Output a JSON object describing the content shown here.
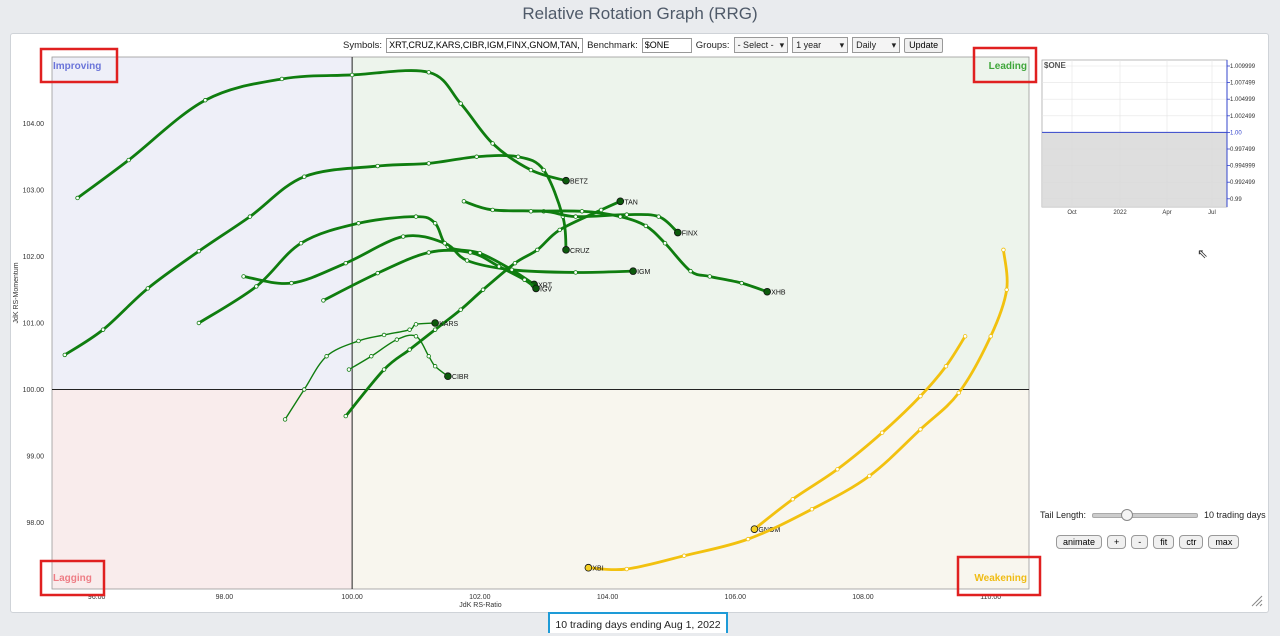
{
  "title": "Relative Rotation Graph (RRG)",
  "toolbar": {
    "symbols_label": "Symbols:",
    "symbols_value": "XRT,CRUZ,KARS,CIBR,IGM,FINX,GNOM,TAN,BETZ",
    "benchmark_label": "Benchmark:",
    "benchmark_value": "$ONE",
    "groups_label": "Groups:",
    "groups_value": "- Select -",
    "period_value": "1 year",
    "frequency_value": "Daily",
    "update_label": "Update"
  },
  "footer": "10 trading days ending Aug 1, 2022",
  "tail": {
    "label": "Tail Length:",
    "value_label": "10 trading days",
    "fraction": 0.3
  },
  "controls": [
    "animate",
    "+",
    "-",
    "fit",
    "ctr",
    "max"
  ],
  "colors": {
    "improving": "#6a74d9",
    "leading": "#3fa63a",
    "lagging": "#ee7d85",
    "weakening": "#f0bc14",
    "tail_green": "#0f7d0f",
    "tail_yellow": "#f2c10f",
    "highlight": "#e02020"
  },
  "chart_data": {
    "type": "scatter",
    "xlabel": "JdK RS-Ratio",
    "ylabel": "JdK RS-Momentum",
    "xlim": [
      95.3,
      110.6
    ],
    "ylim": [
      97.0,
      105.0
    ],
    "xticks": [
      "96.00",
      "98.00",
      "100.00",
      "102.00",
      "104.00",
      "106.00",
      "108.00",
      "110.00"
    ],
    "yticks": [
      "98.00",
      "99.00",
      "100.00",
      "101.00",
      "102.00",
      "103.00",
      "104.00"
    ],
    "quadrants": {
      "top_left": "Improving",
      "top_right": "Leading",
      "bottom_left": "Lagging",
      "bottom_right": "Weakening"
    },
    "series": [
      {
        "name": "BETZ",
        "color": "green",
        "points": [
          [
            95.7,
            102.88
          ],
          [
            96.5,
            103.45
          ],
          [
            97.7,
            104.35
          ],
          [
            98.9,
            104.67
          ],
          [
            100.0,
            104.73
          ],
          [
            101.2,
            104.77
          ],
          [
            101.7,
            104.3
          ],
          [
            102.2,
            103.7
          ],
          [
            102.8,
            103.3
          ],
          [
            103.35,
            103.14
          ]
        ]
      },
      {
        "name": "CRUZ",
        "color": "green",
        "points": [
          [
            95.5,
            100.52
          ],
          [
            96.1,
            100.9
          ],
          [
            96.8,
            101.52
          ],
          [
            97.6,
            102.08
          ],
          [
            98.4,
            102.6
          ],
          [
            99.25,
            103.2
          ],
          [
            100.4,
            103.36
          ],
          [
            101.2,
            103.4
          ],
          [
            101.95,
            103.5
          ],
          [
            102.6,
            103.5
          ],
          [
            103.0,
            103.3
          ],
          [
            103.3,
            102.6
          ],
          [
            103.35,
            102.1
          ]
        ]
      },
      {
        "name": "TAN",
        "color": "green",
        "points": [
          [
            99.9,
            99.6
          ],
          [
            100.5,
            100.3
          ],
          [
            100.9,
            100.6
          ],
          [
            101.3,
            100.9
          ],
          [
            101.7,
            101.2
          ],
          [
            102.05,
            101.5
          ],
          [
            102.55,
            101.9
          ],
          [
            102.9,
            102.1
          ],
          [
            103.25,
            102.4
          ],
          [
            103.9,
            102.7
          ],
          [
            104.2,
            102.83
          ]
        ]
      },
      {
        "name": "FINX",
        "color": "green",
        "points": [
          [
            101.75,
            102.83
          ],
          [
            102.2,
            102.7
          ],
          [
            103.0,
            102.68
          ],
          [
            103.5,
            102.6
          ],
          [
            104.3,
            102.63
          ],
          [
            104.8,
            102.6
          ],
          [
            105.1,
            102.36
          ]
        ]
      },
      {
        "name": "XHB",
        "color": "green",
        "points": [
          [
            102.8,
            102.68
          ],
          [
            103.6,
            102.68
          ],
          [
            104.2,
            102.6
          ],
          [
            104.6,
            102.46
          ],
          [
            104.9,
            102.2
          ],
          [
            105.3,
            101.78
          ],
          [
            105.6,
            101.7
          ],
          [
            106.1,
            101.6
          ],
          [
            106.5,
            101.47
          ]
        ]
      },
      {
        "name": "XRT",
        "color": "green",
        "points": [
          [
            97.6,
            101.0
          ],
          [
            98.5,
            101.55
          ],
          [
            99.2,
            102.2
          ],
          [
            100.1,
            102.5
          ],
          [
            101.0,
            102.6
          ],
          [
            101.3,
            102.5
          ],
          [
            101.5,
            102.15
          ],
          [
            102.0,
            102.05
          ],
          [
            102.5,
            101.8
          ],
          [
            102.85,
            101.58
          ]
        ]
      },
      {
        "name": "IGM",
        "color": "green",
        "points": [
          [
            98.3,
            101.7
          ],
          [
            99.05,
            101.6
          ],
          [
            99.9,
            101.9
          ],
          [
            100.8,
            102.3
          ],
          [
            101.45,
            102.2
          ],
          [
            101.8,
            101.94
          ],
          [
            102.5,
            101.8
          ],
          [
            103.5,
            101.76
          ],
          [
            104.4,
            101.78
          ]
        ]
      },
      {
        "name": "IGV",
        "color": "green",
        "points": [
          [
            99.55,
            101.34
          ],
          [
            100.4,
            101.75
          ],
          [
            101.2,
            102.06
          ],
          [
            101.85,
            102.06
          ],
          [
            102.3,
            101.85
          ],
          [
            102.7,
            101.65
          ],
          [
            102.88,
            101.52
          ]
        ]
      },
      {
        "name": "KARS",
        "color": "green",
        "points": [
          [
            98.95,
            99.55
          ],
          [
            99.25,
            100.0
          ],
          [
            99.6,
            100.5
          ],
          [
            100.1,
            100.73
          ],
          [
            100.5,
            100.82
          ],
          [
            100.9,
            100.9
          ],
          [
            101.0,
            100.98
          ],
          [
            101.3,
            101.0
          ]
        ]
      },
      {
        "name": "CIBR",
        "color": "green",
        "points": [
          [
            99.95,
            100.3
          ],
          [
            100.3,
            100.5
          ],
          [
            100.7,
            100.75
          ],
          [
            101.0,
            100.8
          ],
          [
            101.2,
            100.5
          ],
          [
            101.3,
            100.35
          ],
          [
            101.5,
            100.2
          ]
        ]
      },
      {
        "name": "GNOM",
        "color": "yellow",
        "points": [
          [
            109.6,
            100.8
          ],
          [
            109.3,
            100.35
          ],
          [
            108.9,
            99.9
          ],
          [
            108.3,
            99.35
          ],
          [
            107.6,
            98.8
          ],
          [
            106.9,
            98.35
          ],
          [
            106.3,
            97.9
          ]
        ]
      },
      {
        "name": "XBI",
        "color": "yellow",
        "points": [
          [
            110.2,
            102.1
          ],
          [
            110.25,
            101.5
          ],
          [
            110.0,
            100.8
          ],
          [
            109.5,
            99.95
          ],
          [
            108.9,
            99.4
          ],
          [
            108.1,
            98.7
          ],
          [
            107.2,
            98.2
          ],
          [
            106.2,
            97.75
          ],
          [
            105.2,
            97.5
          ],
          [
            104.3,
            97.3
          ],
          [
            103.7,
            97.32
          ]
        ]
      }
    ],
    "benchmark_panel": {
      "label": "$ONE",
      "yticks": [
        "1.009999",
        "1.007499",
        "1.004999",
        "1.002499",
        "1.00",
        "0.997499",
        "0.994999",
        "0.992499",
        "0.99"
      ],
      "xticks": [
        "Oct",
        "2022",
        "Apr",
        "Jul"
      ],
      "value": 1.0
    }
  }
}
